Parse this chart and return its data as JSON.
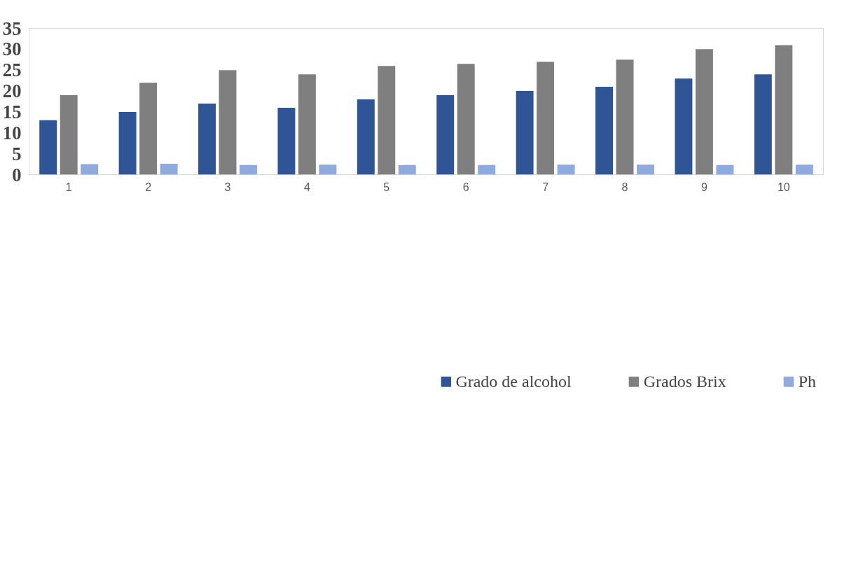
{
  "chart_data": {
    "type": "bar",
    "categories": [
      "1",
      "2",
      "3",
      "4",
      "5",
      "6",
      "7",
      "8",
      "9",
      "10"
    ],
    "series": [
      {
        "name": "Grado de alcohol",
        "color": "#2f5597",
        "values": [
          13,
          15,
          17,
          16,
          18,
          19,
          20,
          21,
          23,
          24
        ]
      },
      {
        "name": "Grados Brix",
        "color": "#7f7f7f",
        "values": [
          19,
          22,
          25,
          24,
          26,
          26.5,
          27,
          27.5,
          30,
          31
        ]
      },
      {
        "name": "Ph",
        "color": "#8faadc",
        "values": [
          2.5,
          2.6,
          2.3,
          2.4,
          2.3,
          2.3,
          2.4,
          2.4,
          2.3,
          2.4
        ]
      }
    ],
    "ylim": [
      0,
      35
    ],
    "yticks": [
      0,
      5,
      10,
      15,
      20,
      25,
      30,
      35
    ],
    "grid": false,
    "legend": "bottom"
  }
}
